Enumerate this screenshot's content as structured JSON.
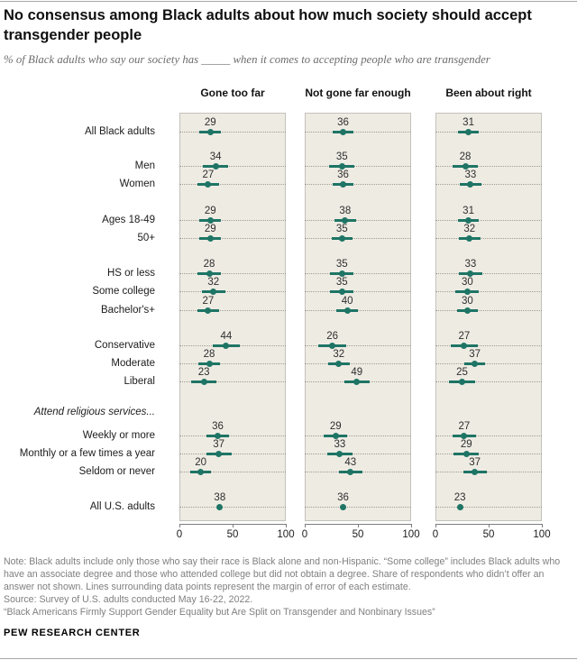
{
  "page": {
    "title": "No consensus among Black adults about how much society should accept transgender people",
    "subtitle": "% of Black adults who say our society has _____ when it comes to accepting people who are transgender",
    "footer": {
      "note_lines": [
        "Note: Black adults include only those who say their race is Black alone and non-Hispanic. “Some college” includes Black adults who have an associate degree and those who attended college but did not obtain a degree. Share of respondents who didn’t offer an answer not shown. Lines surrounding data points represent the margin of error of each estimate.",
        "Source: Survey of U.S. adults conducted May 16-22, 2022.",
        "“Black Americans Firmly Support Gender Equality but Are Split on Transgender and Nonbinary Issues”"
      ],
      "brand": "PEW RESEARCH CENTER"
    }
  },
  "chart_data": {
    "type": "scatter",
    "variant": "dot-plot-with-margin-of-error-bars",
    "title": "No consensus among Black adults about how much society should accept transgender people",
    "columns": [
      "Gone too far",
      "Not gone far enough",
      "Been about right"
    ],
    "xlim": [
      0,
      100
    ],
    "xticks": [
      0,
      50,
      100
    ],
    "grid": "dotted-row-lines",
    "accent_color": "#1e7565",
    "panel_bg": "#eeebe3",
    "groups": [
      {
        "rows": [
          {
            "label": "All Black adults",
            "values": [
              29,
              36,
              31
            ],
            "moe": [
              10,
              10,
              10
            ]
          }
        ]
      },
      {
        "rows": [
          {
            "label": "Men",
            "values": [
              34,
              35,
              28
            ],
            "moe": [
              12,
              12,
              12
            ]
          },
          {
            "label": "Women",
            "values": [
              27,
              36,
              33
            ],
            "moe": [
              10,
              10,
              10
            ]
          }
        ]
      },
      {
        "rows": [
          {
            "label": "Ages 18-49",
            "values": [
              29,
              38,
              31
            ],
            "moe": [
              10,
              10,
              10
            ]
          },
          {
            "label": "50+",
            "values": [
              29,
              35,
              32
            ],
            "moe": [
              10,
              10,
              10
            ]
          }
        ]
      },
      {
        "rows": [
          {
            "label": "HS or less",
            "values": [
              28,
              35,
              33
            ],
            "moe": [
              11,
              11,
              11
            ]
          },
          {
            "label": "Some college",
            "values": [
              32,
              35,
              30
            ],
            "moe": [
              11,
              11,
              11
            ]
          },
          {
            "label": "Bachelor's+",
            "values": [
              27,
              40,
              30
            ],
            "moe": [
              10,
              10,
              10
            ]
          }
        ]
      },
      {
        "rows": [
          {
            "label": "Conservative",
            "values": [
              44,
              26,
              27
            ],
            "moe": [
              13,
              13,
              13
            ]
          },
          {
            "label": "Moderate",
            "values": [
              28,
              32,
              37
            ],
            "moe": [
              10,
              10,
              10
            ]
          },
          {
            "label": "Liberal",
            "values": [
              23,
              49,
              25
            ],
            "moe": [
              12,
              12,
              12
            ]
          }
        ]
      },
      {
        "header": "Attend religious services...",
        "rows": [
          {
            "label": "Weekly or more",
            "values": [
              36,
              29,
              27
            ],
            "moe": [
              11,
              11,
              11
            ]
          },
          {
            "label": "Monthly or a few times a year",
            "values": [
              37,
              33,
              29
            ],
            "moe": [
              12,
              12,
              12
            ]
          },
          {
            "label": "Seldom or never",
            "values": [
              20,
              43,
              37
            ],
            "moe": [
              10,
              11,
              11
            ]
          }
        ]
      },
      {
        "rows": [
          {
            "label": "All U.S. adults",
            "values": [
              38,
              36,
              23
            ],
            "moe": [
              2,
              2,
              2
            ]
          }
        ]
      }
    ]
  }
}
